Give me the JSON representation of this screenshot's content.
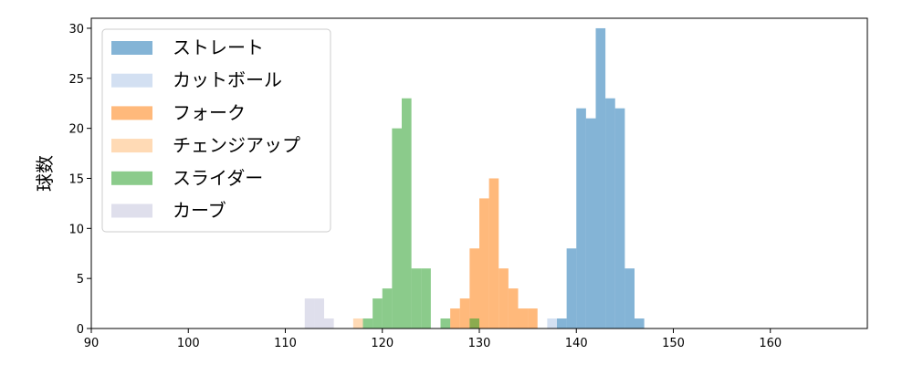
{
  "chart_data": {
    "type": "bar",
    "title": "",
    "xlabel": "",
    "ylabel": "球数",
    "xlim": [
      90,
      170
    ],
    "ylim": [
      0,
      31
    ],
    "xticks": [
      90,
      100,
      110,
      120,
      130,
      140,
      150,
      160
    ],
    "yticks": [
      0,
      5,
      10,
      15,
      20,
      25,
      30
    ],
    "grid": false,
    "legend_position": "top-left",
    "bin_width": 1,
    "series": [
      {
        "name": "ストレート",
        "color": "#1f77b4",
        "bins": [
          {
            "x": 138,
            "y": 1
          },
          {
            "x": 139,
            "y": 8
          },
          {
            "x": 140,
            "y": 22
          },
          {
            "x": 141,
            "y": 21
          },
          {
            "x": 142,
            "y": 30
          },
          {
            "x": 143,
            "y": 23
          },
          {
            "x": 144,
            "y": 22
          },
          {
            "x": 145,
            "y": 6
          },
          {
            "x": 146,
            "y": 1
          }
        ]
      },
      {
        "name": "カットボール",
        "color": "#aec7e8",
        "bins": [
          {
            "x": 137,
            "y": 1
          }
        ]
      },
      {
        "name": "フォーク",
        "color": "#ff7f0e",
        "bins": [
          {
            "x": 127,
            "y": 2
          },
          {
            "x": 128,
            "y": 3
          },
          {
            "x": 129,
            "y": 8
          },
          {
            "x": 130,
            "y": 13
          },
          {
            "x": 131,
            "y": 15
          },
          {
            "x": 132,
            "y": 6
          },
          {
            "x": 133,
            "y": 4
          },
          {
            "x": 134,
            "y": 2
          },
          {
            "x": 135,
            "y": 2
          }
        ]
      },
      {
        "name": "チェンジアップ",
        "color": "#ffbb78",
        "bins": [
          {
            "x": 117,
            "y": 1
          }
        ]
      },
      {
        "name": "スライダー",
        "color": "#2ca02c",
        "bins": [
          {
            "x": 118,
            "y": 1
          },
          {
            "x": 119,
            "y": 3
          },
          {
            "x": 120,
            "y": 4
          },
          {
            "x": 121,
            "y": 20
          },
          {
            "x": 122,
            "y": 23
          },
          {
            "x": 123,
            "y": 6
          },
          {
            "x": 124,
            "y": 6
          },
          {
            "x": 126,
            "y": 1
          },
          {
            "x": 129,
            "y": 1
          }
        ]
      },
      {
        "name": "カーブ",
        "color": "#c5c5dd",
        "bins": [
          {
            "x": 112,
            "y": 3
          },
          {
            "x": 113,
            "y": 3
          },
          {
            "x": 114,
            "y": 1
          }
        ]
      }
    ]
  }
}
